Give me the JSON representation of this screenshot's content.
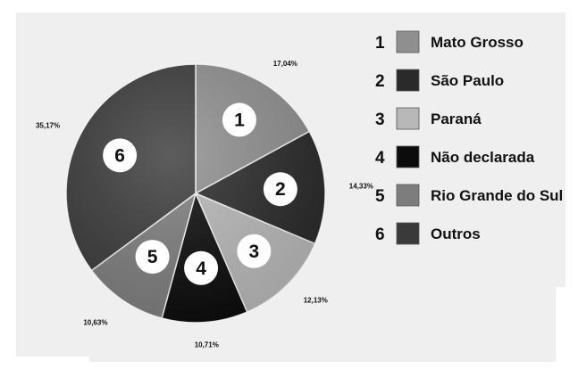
{
  "chart_data": {
    "type": "pie",
    "title": "",
    "slices": [
      {
        "number": "1",
        "label": "Mato Grosso",
        "value": 17.04,
        "value_label": "17,04%",
        "color": "#8f8f8f"
      },
      {
        "number": "2",
        "label": "São Paulo",
        "value": 14.33,
        "value_label": "14,33%",
        "color": "#2a2a2a"
      },
      {
        "number": "3",
        "label": "Paraná",
        "value": 12.13,
        "value_label": "12,13%",
        "color": "#b8b8b8"
      },
      {
        "number": "4",
        "label": "Não declarada",
        "value": 10.71,
        "value_label": "10,71%",
        "color": "#0c0c0c"
      },
      {
        "number": "5",
        "label": "Rio Grande do Sul",
        "value": 10.63,
        "value_label": "10,63%",
        "color": "#7d7d7d"
      },
      {
        "number": "6",
        "label": "Outros",
        "value": 35.17,
        "value_label": "35,17%",
        "color": "#3a3a3a"
      }
    ],
    "start_angle_deg": 0,
    "direction": "clockwise",
    "legend_position": "right"
  }
}
